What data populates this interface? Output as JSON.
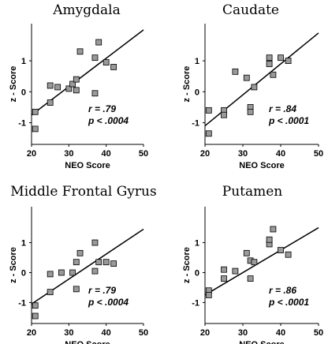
{
  "chart_data": [
    {
      "type": "scatter",
      "title": "Amygdala",
      "xlabel": "NEO Score",
      "ylabel": "z - Score",
      "xlim": [
        20,
        50
      ],
      "ylim": [
        -1.7,
        2.2
      ],
      "xticks": [
        "20",
        "30",
        "40",
        "50"
      ],
      "yticks": [
        "-1",
        "0",
        "1"
      ],
      "grid": false,
      "points": [
        {
          "x": 21,
          "y": -0.65
        },
        {
          "x": 21,
          "y": -1.2
        },
        {
          "x": 25,
          "y": -0.35
        },
        {
          "x": 25,
          "y": 0.2
        },
        {
          "x": 27,
          "y": 0.15
        },
        {
          "x": 30,
          "y": 0.1
        },
        {
          "x": 31,
          "y": 0.25
        },
        {
          "x": 32,
          "y": 0.05
        },
        {
          "x": 32,
          "y": 0.4
        },
        {
          "x": 33,
          "y": 1.3
        },
        {
          "x": 37,
          "y": -0.05
        },
        {
          "x": 37,
          "y": 1.1
        },
        {
          "x": 38,
          "y": 1.6
        },
        {
          "x": 40,
          "y": 0.95
        },
        {
          "x": 42,
          "y": 0.8
        }
      ],
      "fit_line": {
        "x": [
          20,
          50
        ],
        "y": [
          -0.75,
          2.0
        ]
      },
      "r_label": "r = .79",
      "p_label": "p < .0004"
    },
    {
      "type": "scatter",
      "title": "Caudate",
      "xlabel": "NEO Score",
      "ylabel": "z - Score",
      "xlim": [
        20,
        50
      ],
      "ylim": [
        -1.7,
        2.2
      ],
      "xticks": [
        "20",
        "30",
        "40",
        "50"
      ],
      "yticks": [
        "-1",
        "0",
        "1"
      ],
      "grid": false,
      "points": [
        {
          "x": 21,
          "y": -0.6
        },
        {
          "x": 21,
          "y": -1.35
        },
        {
          "x": 25,
          "y": -0.6
        },
        {
          "x": 25,
          "y": -0.75
        },
        {
          "x": 28,
          "y": 0.65
        },
        {
          "x": 31,
          "y": 0.45
        },
        {
          "x": 32,
          "y": -0.5
        },
        {
          "x": 32,
          "y": -0.65
        },
        {
          "x": 33,
          "y": 0.15
        },
        {
          "x": 37,
          "y": 0.9
        },
        {
          "x": 37,
          "y": 1.1
        },
        {
          "x": 38,
          "y": 0.55
        },
        {
          "x": 40,
          "y": 1.1
        },
        {
          "x": 42,
          "y": 1.0
        }
      ],
      "fit_line": {
        "x": [
          20,
          50
        ],
        "y": [
          -1.1,
          1.9
        ]
      },
      "r_label": "r = .84",
      "p_label": "p < .0001"
    },
    {
      "type": "scatter",
      "title": "Middle Frontal Gyrus",
      "xlabel": "NEO Score",
      "ylabel": "z - Score",
      "xlim": [
        20,
        50
      ],
      "ylim": [
        -1.7,
        2.2
      ],
      "xticks": [
        "20",
        "30",
        "40",
        "50"
      ],
      "yticks": [
        "-1",
        "0",
        "1"
      ],
      "grid": false,
      "points": [
        {
          "x": 21,
          "y": -1.1
        },
        {
          "x": 21,
          "y": -1.45
        },
        {
          "x": 25,
          "y": -0.65
        },
        {
          "x": 25,
          "y": -0.05
        },
        {
          "x": 28,
          "y": 0.0
        },
        {
          "x": 31,
          "y": 0.0
        },
        {
          "x": 32,
          "y": -0.55
        },
        {
          "x": 32,
          "y": 0.35
        },
        {
          "x": 33,
          "y": 0.65
        },
        {
          "x": 37,
          "y": 0.05
        },
        {
          "x": 37,
          "y": 1.0
        },
        {
          "x": 38,
          "y": 0.35
        },
        {
          "x": 40,
          "y": 0.35
        },
        {
          "x": 42,
          "y": 0.3
        }
      ],
      "fit_line": {
        "x": [
          20,
          50
        ],
        "y": [
          -1.05,
          1.45
        ]
      },
      "r_label": "r = .79",
      "p_label": "p < .0004"
    },
    {
      "type": "scatter",
      "title": "Putamen",
      "xlabel": "NEO Score",
      "ylabel": "z - Score",
      "xlim": [
        20,
        50
      ],
      "ylim": [
        -1.7,
        2.2
      ],
      "xticks": [
        "20",
        "30",
        "40",
        "50"
      ],
      "yticks": [
        "-1",
        "0",
        "1"
      ],
      "grid": false,
      "points": [
        {
          "x": 21,
          "y": -0.6
        },
        {
          "x": 21,
          "y": -0.75
        },
        {
          "x": 25,
          "y": 0.1
        },
        {
          "x": 25,
          "y": -0.2
        },
        {
          "x": 28,
          "y": 0.05
        },
        {
          "x": 31,
          "y": 0.65
        },
        {
          "x": 32,
          "y": -0.2
        },
        {
          "x": 32,
          "y": 0.4
        },
        {
          "x": 33,
          "y": 0.35
        },
        {
          "x": 37,
          "y": 0.95
        },
        {
          "x": 37,
          "y": 1.1
        },
        {
          "x": 38,
          "y": 1.45
        },
        {
          "x": 40,
          "y": 0.75
        },
        {
          "x": 42,
          "y": 0.6
        }
      ],
      "fit_line": {
        "x": [
          20,
          50
        ],
        "y": [
          -0.75,
          1.5
        ]
      },
      "r_label": "r = .86",
      "p_label": "p < .0001"
    }
  ]
}
